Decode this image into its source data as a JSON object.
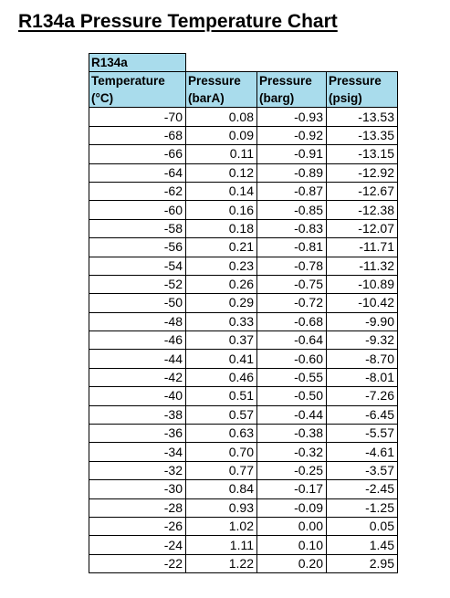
{
  "title": "R134a Pressure Temperature Chart",
  "table": {
    "label": "R134a",
    "headers": [
      {
        "line1": "Temperature",
        "line2": "(°C)"
      },
      {
        "line1": "Pressure",
        "line2": "(barA)"
      },
      {
        "line1": "Pressure",
        "line2": "(barg)"
      },
      {
        "line1": "Pressure",
        "line2": "(psig)"
      }
    ],
    "rows": [
      [
        "-70",
        "0.08",
        "-0.93",
        "-13.53"
      ],
      [
        "-68",
        "0.09",
        "-0.92",
        "-13.35"
      ],
      [
        "-66",
        "0.11",
        "-0.91",
        "-13.15"
      ],
      [
        "-64",
        "0.12",
        "-0.89",
        "-12.92"
      ],
      [
        "-62",
        "0.14",
        "-0.87",
        "-12.67"
      ],
      [
        "-60",
        "0.16",
        "-0.85",
        "-12.38"
      ],
      [
        "-58",
        "0.18",
        "-0.83",
        "-12.07"
      ],
      [
        "-56",
        "0.21",
        "-0.81",
        "-11.71"
      ],
      [
        "-54",
        "0.23",
        "-0.78",
        "-11.32"
      ],
      [
        "-52",
        "0.26",
        "-0.75",
        "-10.89"
      ],
      [
        "-50",
        "0.29",
        "-0.72",
        "-10.42"
      ],
      [
        "-48",
        "0.33",
        "-0.68",
        "-9.90"
      ],
      [
        "-46",
        "0.37",
        "-0.64",
        "-9.32"
      ],
      [
        "-44",
        "0.41",
        "-0.60",
        "-8.70"
      ],
      [
        "-42",
        "0.46",
        "-0.55",
        "-8.01"
      ],
      [
        "-40",
        "0.51",
        "-0.50",
        "-7.26"
      ],
      [
        "-38",
        "0.57",
        "-0.44",
        "-6.45"
      ],
      [
        "-36",
        "0.63",
        "-0.38",
        "-5.57"
      ],
      [
        "-34",
        "0.70",
        "-0.32",
        "-4.61"
      ],
      [
        "-32",
        "0.77",
        "-0.25",
        "-3.57"
      ],
      [
        "-30",
        "0.84",
        "-0.17",
        "-2.45"
      ],
      [
        "-28",
        "0.93",
        "-0.09",
        "-1.25"
      ],
      [
        "-26",
        "1.02",
        "0.00",
        "0.05"
      ],
      [
        "-24",
        "1.11",
        "0.10",
        "1.45"
      ],
      [
        "-22",
        "1.22",
        "0.20",
        "2.95"
      ]
    ]
  }
}
